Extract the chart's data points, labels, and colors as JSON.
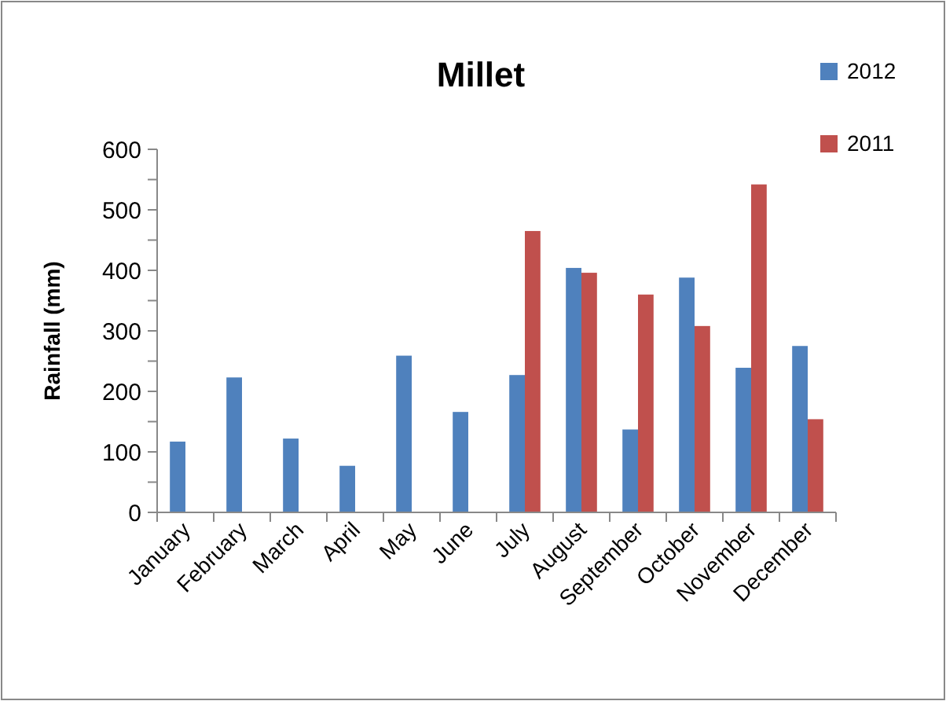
{
  "chart_data": {
    "type": "bar",
    "title": "Millet",
    "ylabel": "Rainfall (mm)",
    "categories": [
      "January",
      "February",
      "March",
      "April",
      "May",
      "June",
      "July",
      "August",
      "September",
      "October",
      "November",
      "December"
    ],
    "series": [
      {
        "name": "2012",
        "color": "#4f81bd",
        "values": [
          117,
          223,
          122,
          77,
          259,
          166,
          227,
          404,
          137,
          388,
          239,
          275
        ]
      },
      {
        "name": "2011",
        "color": "#c0504d",
        "values": [
          null,
          null,
          null,
          null,
          null,
          null,
          465,
          396,
          360,
          308,
          542,
          154
        ]
      }
    ],
    "ylim": [
      0,
      600
    ],
    "yticks": [
      0,
      {
        "value": 50,
        "label": null
      },
      100,
      {
        "value": 150,
        "label": null
      },
      200,
      {
        "value": 250,
        "label": null
      },
      300,
      {
        "value": 350,
        "label": null
      },
      400,
      {
        "value": 450,
        "label": null
      },
      500,
      {
        "value": 550,
        "label": null
      },
      600
    ],
    "grid": false,
    "legend": "top right"
  }
}
